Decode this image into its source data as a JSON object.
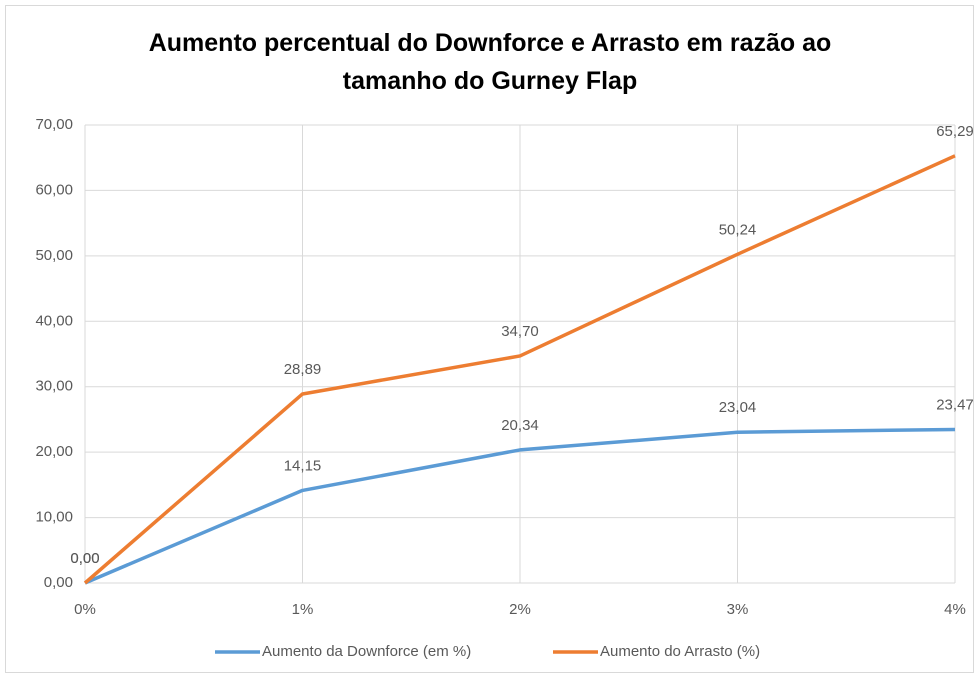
{
  "chart_data": {
    "type": "line",
    "title": "Aumento percentual do Downforce e Arrasto em razão ao tamanho do Gurney Flap",
    "categories": [
      "0%",
      "1%",
      "2%",
      "3%",
      "4%"
    ],
    "series": [
      {
        "name": "Aumento da Downforce (em %)",
        "color": "#5b9bd5",
        "values": [
          0,
          14.15,
          20.34,
          23.04,
          23.47
        ],
        "value_labels": [
          "0,00",
          "14,15",
          "20,34",
          "23,04",
          "23,47"
        ]
      },
      {
        "name": "Aumento do Arrasto (%)",
        "color": "#ed7d31",
        "values": [
          0,
          28.89,
          34.7,
          50.24,
          65.29
        ],
        "value_labels": [
          "0,00",
          "28,89",
          "34,70",
          "50,24",
          "65,29"
        ]
      }
    ],
    "ylim": [
      0,
      70
    ],
    "yticks": [
      {
        "value": 0,
        "label": "0,00"
      },
      {
        "value": 10,
        "label": "10,00"
      },
      {
        "value": 20,
        "label": "20,00"
      },
      {
        "value": 30,
        "label": "30,00"
      },
      {
        "value": 40,
        "label": "40,00"
      },
      {
        "value": 50,
        "label": "50,00"
      },
      {
        "value": 60,
        "label": "60,00"
      },
      {
        "value": 70,
        "label": "70,00"
      }
    ],
    "grid": true,
    "legend": "bottom"
  }
}
